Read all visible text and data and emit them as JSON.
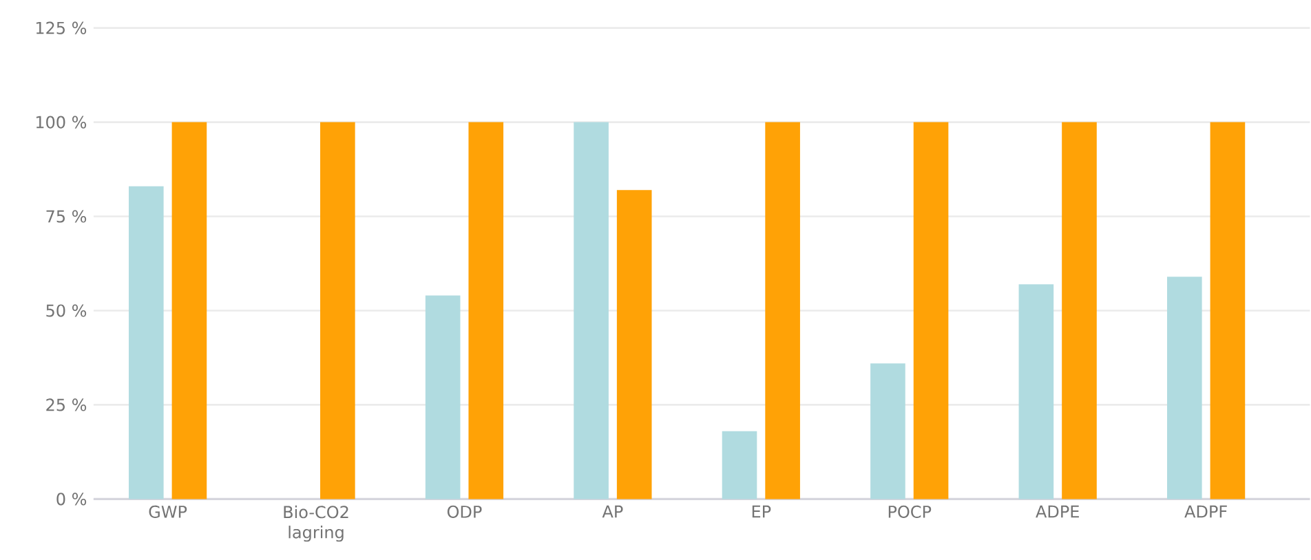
{
  "chart_data": {
    "type": "bar",
    "categories": [
      "GWP",
      "Bio-CO2 lagring",
      "ODP",
      "AP",
      "EP",
      "POCP",
      "ADPE",
      "ADPF"
    ],
    "series": [
      {
        "color": "#b0dbe0",
        "values": [
          83,
          null,
          54,
          100,
          18,
          36,
          57,
          59
        ]
      },
      {
        "color": "#ffa206",
        "values": [
          100,
          100,
          100,
          82,
          100,
          100,
          100,
          100
        ]
      }
    ],
    "ylim": [
      0,
      125
    ],
    "yticks": [
      {
        "value": 0,
        "label": "0 %"
      },
      {
        "value": 25,
        "label": "25 %"
      },
      {
        "value": 50,
        "label": "50 %"
      },
      {
        "value": 75,
        "label": "75 %"
      },
      {
        "value": 100,
        "label": "100 %"
      },
      {
        "value": 125,
        "label": "125 %"
      }
    ],
    "grid": "y"
  }
}
